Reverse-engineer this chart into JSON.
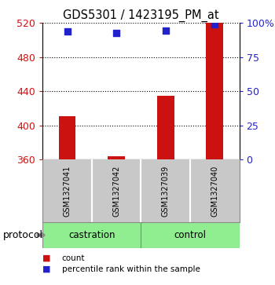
{
  "title": "GDS5301 / 1423195_PM_at",
  "samples": [
    "GSM1327041",
    "GSM1327042",
    "GSM1327039",
    "GSM1327040"
  ],
  "bar_values": [
    410.5,
    363.5,
    435.0,
    520.0
  ],
  "percentile_values": [
    93.5,
    92.5,
    94.5,
    99.0
  ],
  "bar_color": "#cc1111",
  "dot_color": "#2222cc",
  "left_ylim": [
    360,
    520
  ],
  "left_yticks": [
    360,
    400,
    440,
    480,
    520
  ],
  "right_ylim": [
    0,
    100
  ],
  "right_yticks": [
    0,
    25,
    50,
    75,
    100
  ],
  "right_yticklabels": [
    "0",
    "25",
    "50",
    "75",
    "100%"
  ],
  "left_tick_color": "#cc1111",
  "right_tick_color": "#2222cc",
  "groups": [
    {
      "label": "castration",
      "samples": [
        0,
        1
      ],
      "color": "#90ee90"
    },
    {
      "label": "control",
      "samples": [
        2,
        3
      ],
      "color": "#90ee90"
    }
  ],
  "protocol_label": "protocol",
  "background_color": "#ffffff",
  "plot_bg_color": "#ffffff",
  "grid_color": "#000000",
  "sample_box_color": "#c8c8c8",
  "bar_width": 0.35,
  "dot_size": 40,
  "fig_width": 3.5,
  "fig_height": 3.63,
  "dpi": 100
}
